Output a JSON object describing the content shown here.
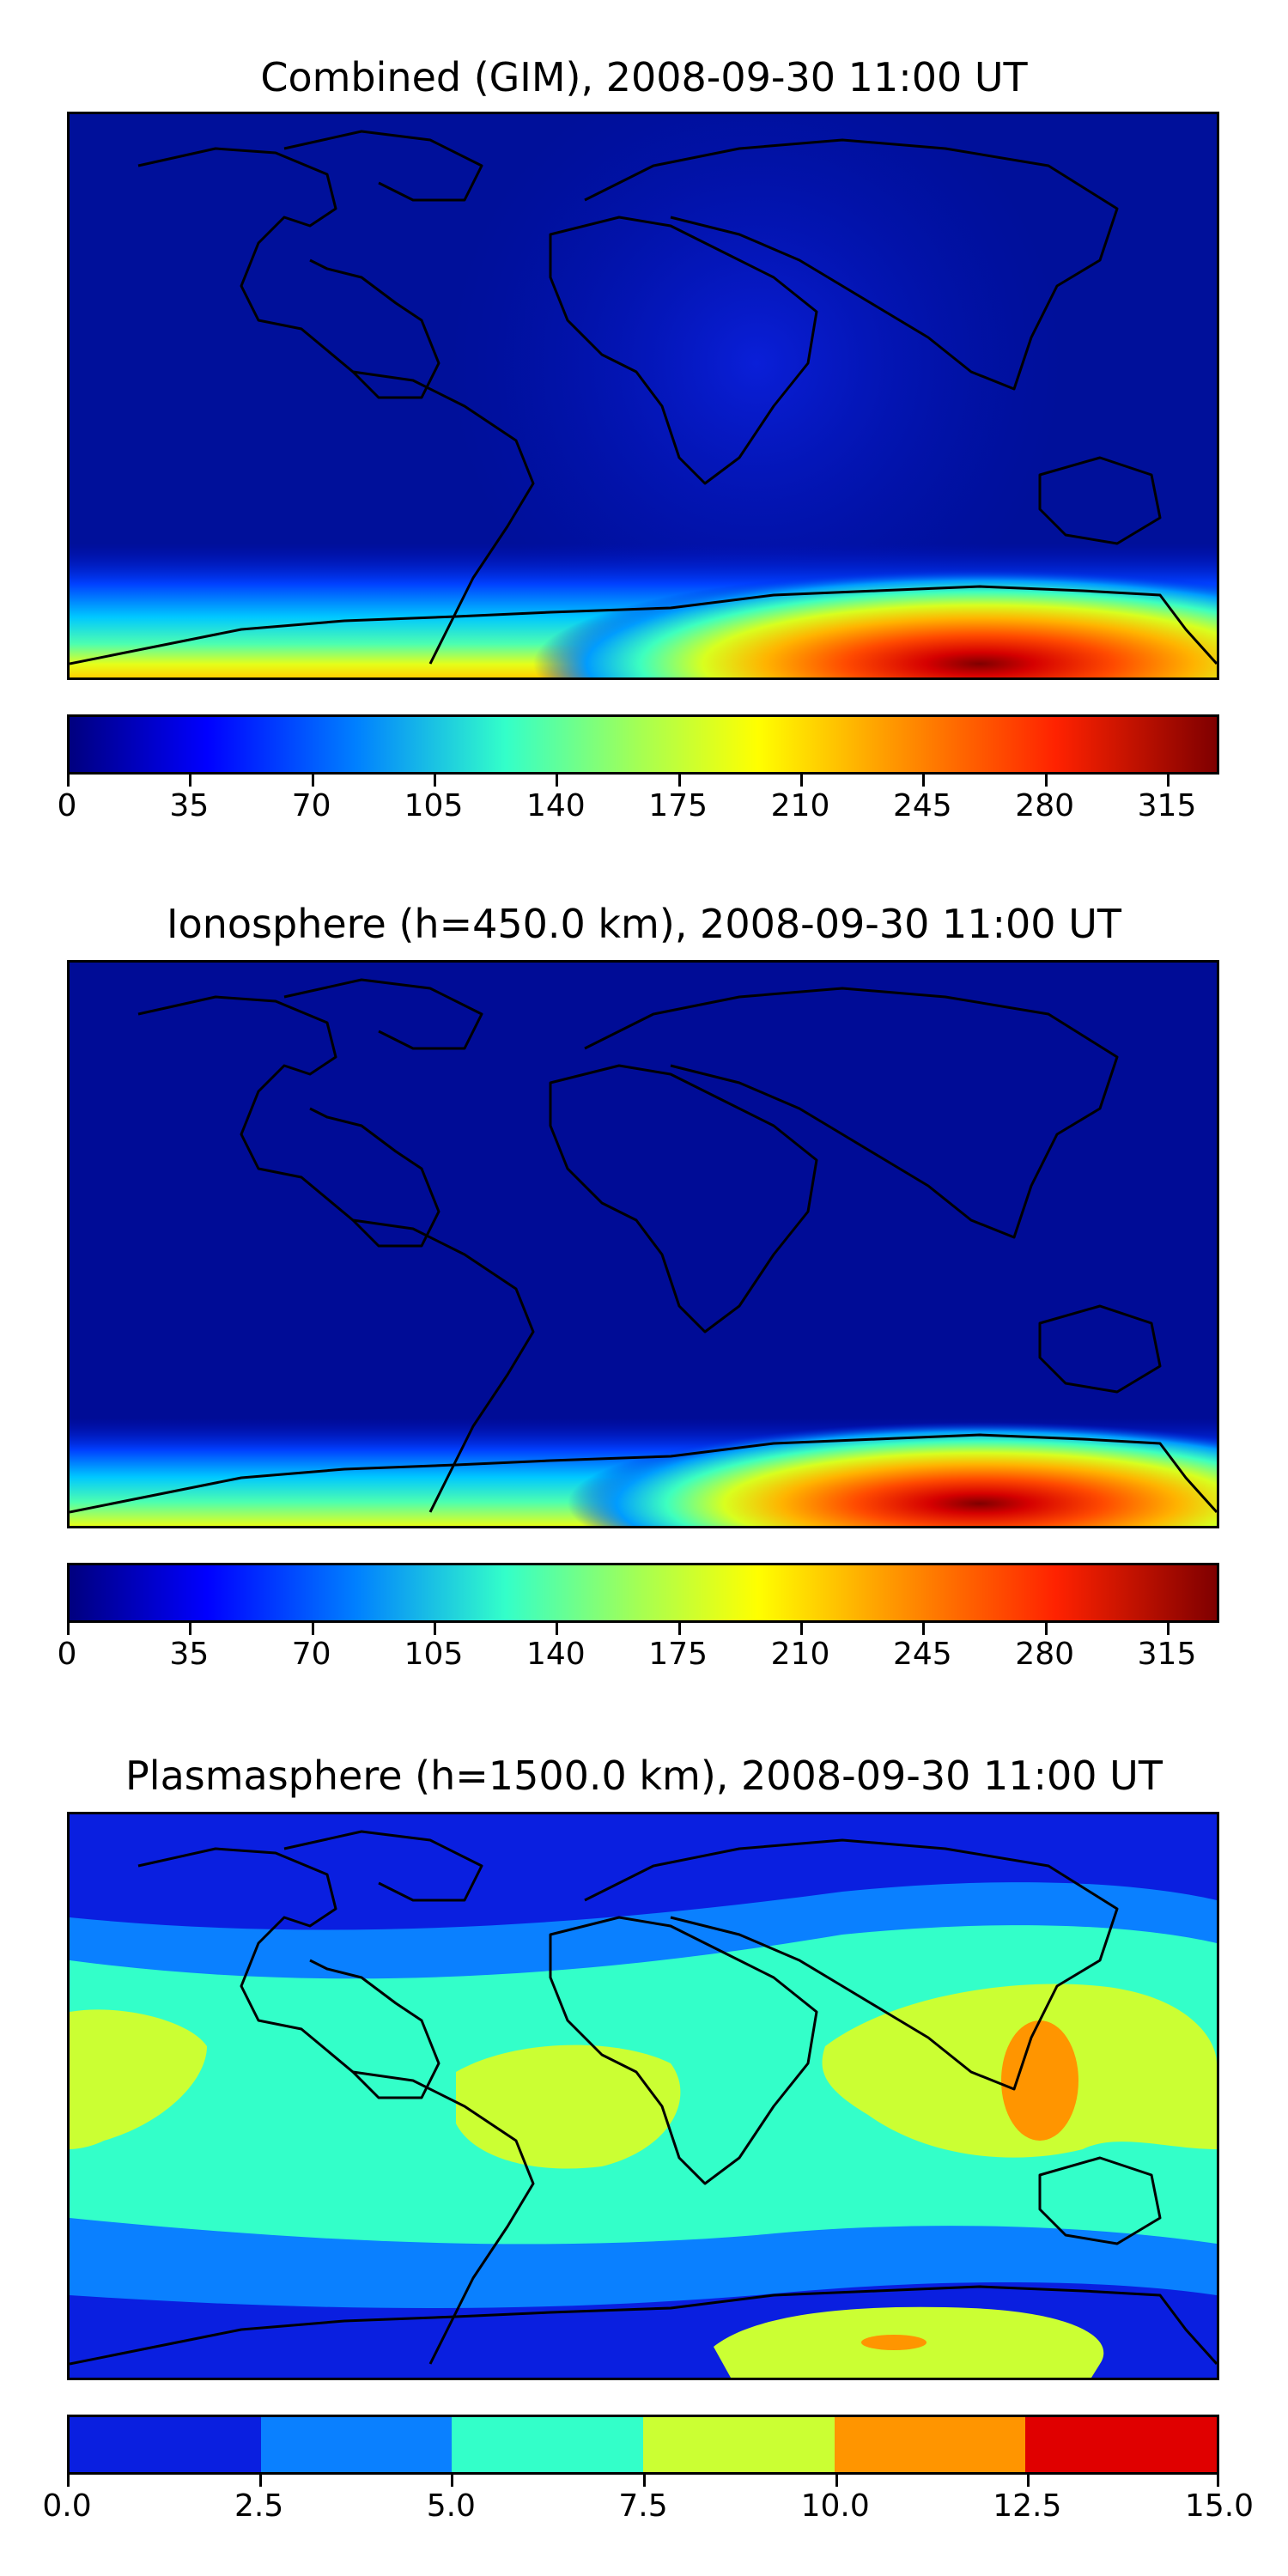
{
  "chart_data": [
    {
      "type": "heatmap",
      "title": "Combined (GIM), 2008-09-30 11:00 UT",
      "colorbar": {
        "ticks": [
          "0",
          "35",
          "70",
          "105",
          "140",
          "175",
          "210",
          "245",
          "280",
          "315"
        ],
        "range": [
          0,
          330
        ],
        "colormap": "jet"
      },
      "hotspot": {
        "region": "Antarctica, lon ~90E",
        "approx_max": 330
      },
      "background_level": 20
    },
    {
      "type": "heatmap",
      "title": "Ionosphere  (h=450.0 km), 2008-09-30 11:00 UT",
      "colorbar": {
        "ticks": [
          "0",
          "35",
          "70",
          "105",
          "140",
          "175",
          "210",
          "245",
          "280",
          "315"
        ],
        "range": [
          0,
          330
        ],
        "colormap": "jet"
      },
      "hotspot": {
        "region": "Antarctica, lon ~90E",
        "approx_max": 330
      },
      "background_level": 15
    },
    {
      "type": "heatmap",
      "title": "Plasmasphere (h=1500.0 km), 2008-09-30 11:00 UT",
      "colorbar": {
        "ticks": [
          "0.0",
          "2.5",
          "5.0",
          "7.5",
          "10.0",
          "12.5",
          "15.0"
        ],
        "range": [
          0,
          15
        ],
        "levels": [
          {
            "from": 0.0,
            "to": 2.5,
            "color": "#0a1fe0"
          },
          {
            "from": 2.5,
            "to": 5.0,
            "color": "#0a80ff"
          },
          {
            "from": 5.0,
            "to": 7.5,
            "color": "#33ffc9"
          },
          {
            "from": 7.5,
            "to": 10.0,
            "color": "#cbff33"
          },
          {
            "from": 10.0,
            "to": 12.5,
            "color": "#ff9500"
          },
          {
            "from": 12.5,
            "to": 15.0,
            "color": "#e00000"
          }
        ]
      }
    }
  ]
}
